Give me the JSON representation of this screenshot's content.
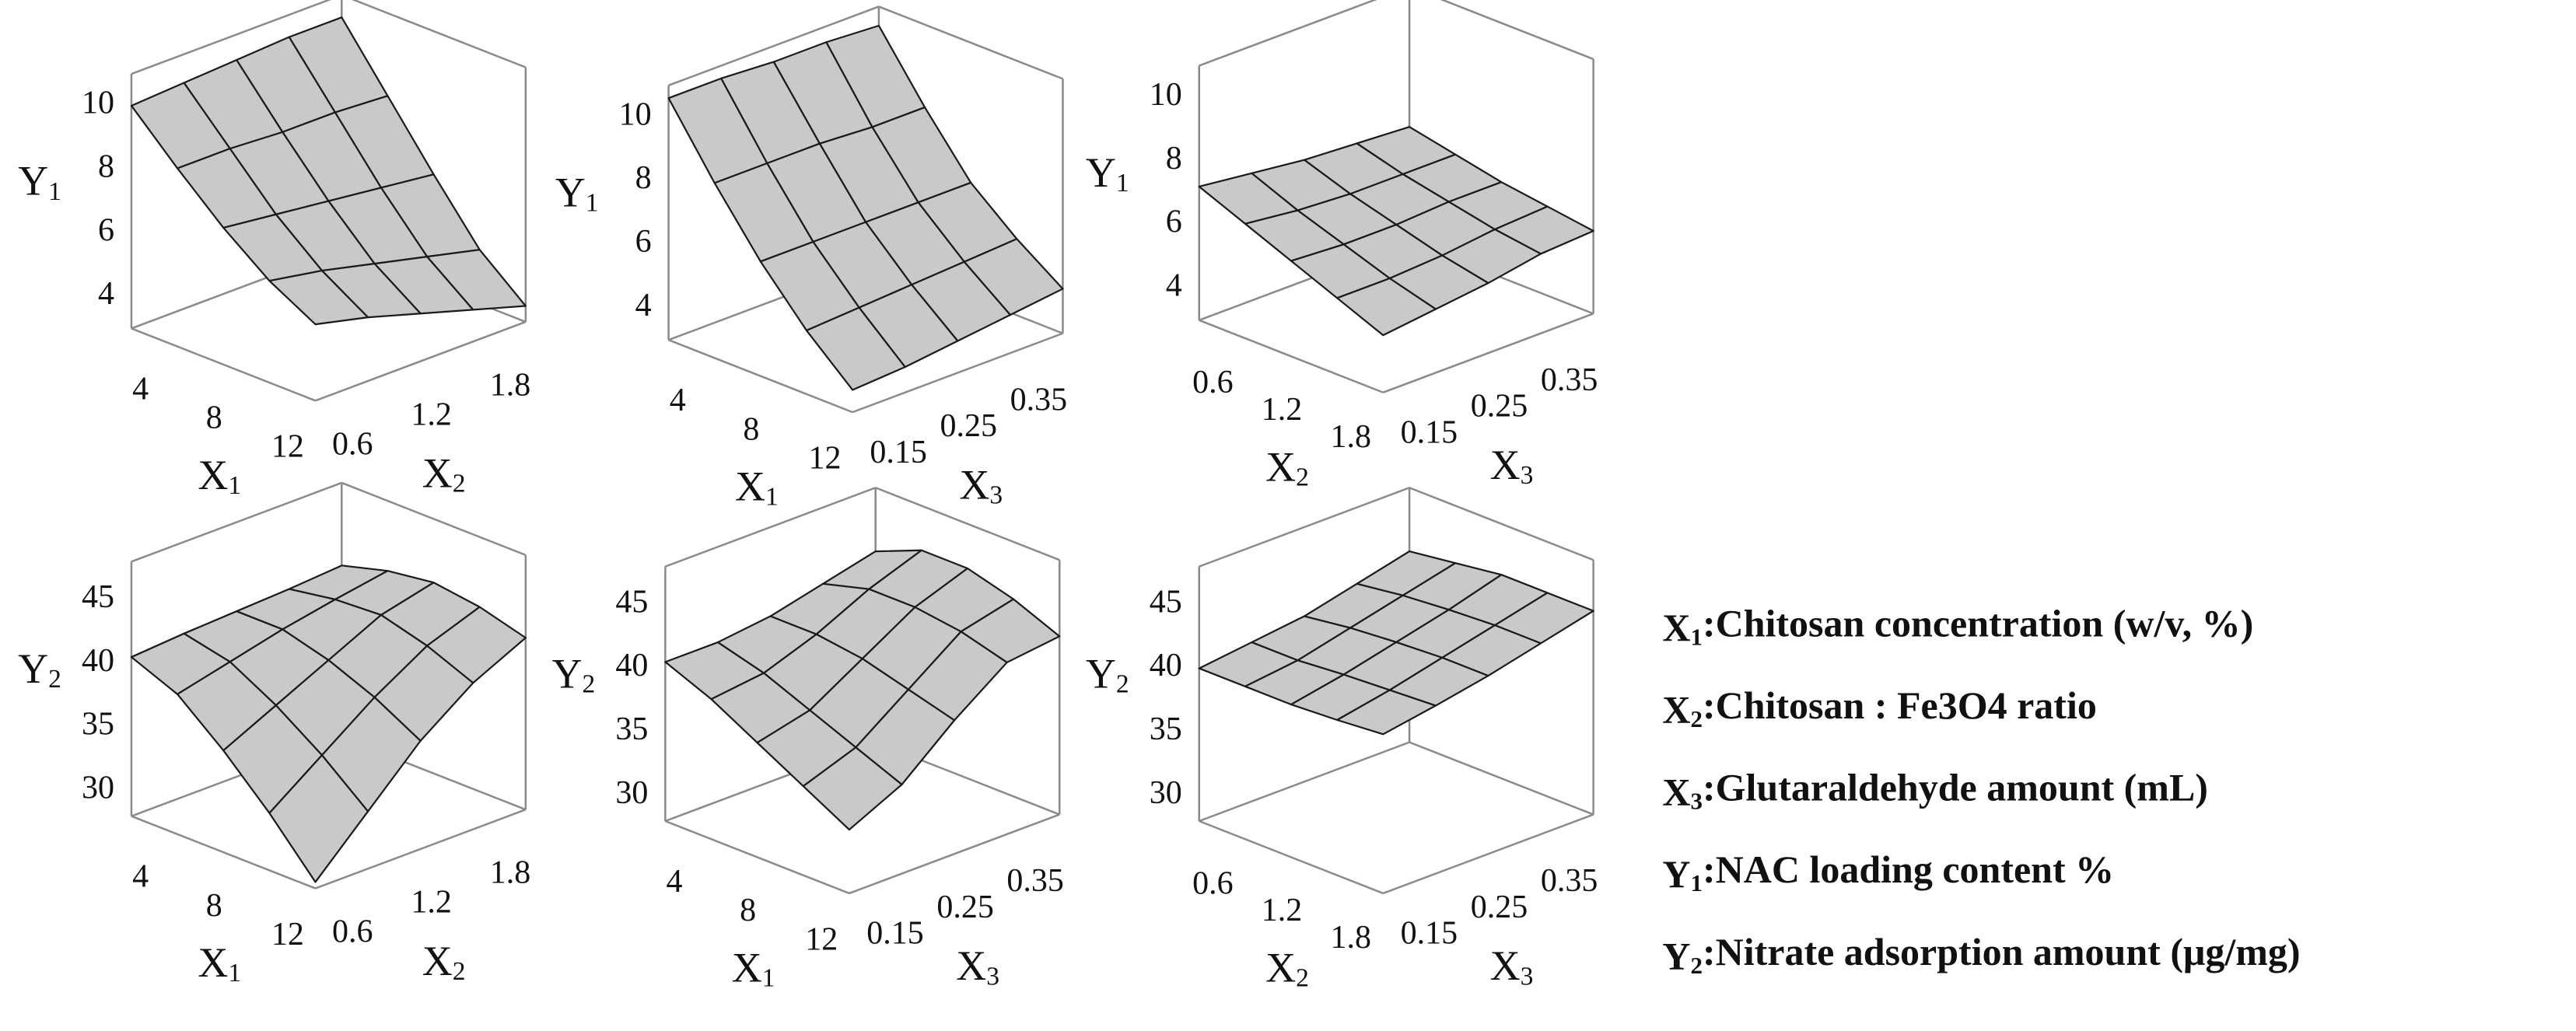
{
  "chart_data": [
    {
      "type": "surface",
      "x_label": "X1",
      "y_label": "X2",
      "z_label": "Y1",
      "x": [
        3,
        5.5,
        8,
        10.5,
        13
      ],
      "y": [
        0.4,
        0.8,
        1.2,
        1.6,
        2.0
      ],
      "z": [
        [
          10,
          10.1,
          10.2,
          10.3,
          10.3
        ],
        [
          8.6,
          8.6,
          8.5,
          8.5,
          8.4
        ],
        [
          7.3,
          7.1,
          6.9,
          6.7,
          6.5
        ],
        [
          6.2,
          5.9,
          5.5,
          5.1,
          4.7
        ],
        [
          5.4,
          5.0,
          4.5,
          4.0,
          3.5
        ]
      ],
      "xlim": [
        3,
        13
      ],
      "ylim": [
        0.4,
        2.0
      ],
      "zlim": [
        3,
        11
      ],
      "xticks": [
        4,
        8,
        12
      ],
      "yticks": [
        0.6,
        1.2,
        1.8
      ],
      "zticks": [
        4,
        6,
        8,
        10
      ]
    },
    {
      "type": "surface",
      "x_label": "X1",
      "y_label": "X3",
      "z_label": "Y1",
      "x": [
        3,
        5.5,
        8,
        10.5,
        13
      ],
      "y": [
        0.1,
        0.175,
        0.25,
        0.325,
        0.4
      ],
      "z": [
        [
          10.6,
          10.6,
          10.5,
          10.5,
          10.4
        ],
        [
          8.5,
          8.5,
          8.5,
          8.4,
          8.4
        ],
        [
          6.6,
          6.6,
          6.6,
          6.6,
          6.6
        ],
        [
          5,
          5.1,
          5.2,
          5.3,
          5.4
        ],
        [
          3.7,
          3.8,
          4.0,
          4.2,
          4.4
        ]
      ],
      "xlim": [
        3,
        13
      ],
      "ylim": [
        0.1,
        0.4
      ],
      "zlim": [
        3,
        11
      ],
      "xticks": [
        4,
        8,
        12
      ],
      "yticks": [
        0.15,
        0.25,
        0.35
      ],
      "zticks": [
        4,
        6,
        8,
        10
      ]
    },
    {
      "type": "surface",
      "x_label": "X2",
      "y_label": "X3",
      "z_label": "Y1",
      "x": [
        0.4,
        0.8,
        1.2,
        1.6,
        2.0
      ],
      "y": [
        0.1,
        0.175,
        0.25,
        0.325,
        0.4
      ],
      "z": [
        [
          7.2,
          7.0,
          6.8,
          6.7,
          6.6
        ],
        [
          6.6,
          6.4,
          6.3,
          6.3,
          6.3
        ],
        [
          6.0,
          5.9,
          5.9,
          6.0,
          6.0
        ],
        [
          5.4,
          5.4,
          5.5,
          5.7,
          5.8
        ],
        [
          4.8,
          5.0,
          5.2,
          5.5,
          5.6
        ]
      ],
      "xlim": [
        0.4,
        2.0
      ],
      "ylim": [
        0.1,
        0.4
      ],
      "zlim": [
        3,
        11
      ],
      "xticks": [
        0.6,
        1.2,
        1.8
      ],
      "yticks": [
        0.15,
        0.25,
        0.35
      ],
      "zticks": [
        4,
        6,
        8,
        10
      ]
    },
    {
      "type": "surface",
      "x_label": "X1",
      "y_label": "X2",
      "z_label": "Y2",
      "x": [
        3,
        5.5,
        8,
        10.5,
        13
      ],
      "y": [
        0.4,
        0.8,
        1.2,
        1.6,
        2.0
      ],
      "z": [
        [
          40.5,
          40.8,
          41,
          41.2,
          41.5
        ],
        [
          39,
          40,
          41,
          41.8,
          42.5
        ],
        [
          36,
          38,
          40,
          42,
          43
        ],
        [
          32.5,
          35.5,
          38.5,
          41,
          42.5
        ],
        [
          28.5,
          32.5,
          36.5,
          39.5,
          41.5
        ]
      ],
      "xlim": [
        3,
        13
      ],
      "ylim": [
        0.4,
        2.0
      ],
      "zlim": [
        28,
        48
      ],
      "xticks": [
        4,
        8,
        12
      ],
      "yticks": [
        0.6,
        1.2,
        1.8
      ],
      "zticks": [
        30,
        35,
        40,
        45
      ]
    },
    {
      "type": "surface",
      "x_label": "X1",
      "y_label": "X3",
      "z_label": "Y2",
      "x": [
        3,
        5.5,
        8,
        10.5,
        13
      ],
      "y": [
        0.1,
        0.175,
        0.25,
        0.325,
        0.4
      ],
      "z": [
        [
          40.5,
          40.5,
          41,
          42,
          43
        ],
        [
          39,
          39.5,
          41,
          43,
          44.5
        ],
        [
          37,
          38,
          40.5,
          43,
          44.5
        ],
        [
          35,
          36.5,
          39.5,
          42.5,
          43.5
        ],
        [
          33,
          35,
          38.5,
          41.5,
          42
        ]
      ],
      "xlim": [
        3,
        13
      ],
      "ylim": [
        0.1,
        0.4
      ],
      "zlim": [
        28,
        48
      ],
      "xticks": [
        4,
        8,
        12
      ],
      "yticks": [
        0.15,
        0.25,
        0.35
      ],
      "zticks": [
        30,
        35,
        40,
        45
      ]
    },
    {
      "type": "surface",
      "x_label": "X2",
      "y_label": "X3",
      "z_label": "Y2",
      "x": [
        0.4,
        0.8,
        1.2,
        1.6,
        2.0
      ],
      "y": [
        0.1,
        0.175,
        0.25,
        0.325,
        0.4
      ],
      "z": [
        [
          40,
          40.5,
          41,
          42,
          43
        ],
        [
          40,
          40.5,
          41.5,
          42.5,
          43.5
        ],
        [
          40,
          40.8,
          41.8,
          42.8,
          44
        ],
        [
          40.2,
          41,
          42,
          43,
          44
        ],
        [
          40.5,
          41.2,
          42,
          43,
          44
        ]
      ],
      "xlim": [
        0.4,
        2.0
      ],
      "ylim": [
        0.1,
        0.4
      ],
      "zlim": [
        28,
        48
      ],
      "xticks": [
        0.6,
        1.2,
        1.8
      ],
      "yticks": [
        0.15,
        0.25,
        0.35
      ],
      "zticks": [
        30,
        35,
        40,
        45
      ]
    }
  ],
  "legend_notes": [
    "X1:Chitosan concentration (w/v, %)",
    "X2:Chitosan : Fe3O4 ratio",
    "X3:Glutaraldehyde amount (mL)",
    "Y1:NAC loading content %",
    "Y2:Nitrate adsorption amount (μg/mg)"
  ]
}
